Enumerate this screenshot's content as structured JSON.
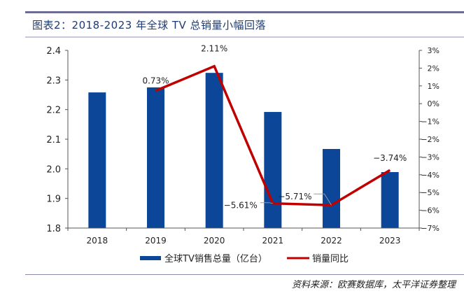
{
  "header": {
    "title": "图表2：2018-2023 年全球 TV 总销量小幅回落"
  },
  "source": "资料来源：欧赛数据库，太平洋证券整理",
  "colors": {
    "bar": "#0b4698",
    "line": "#c00000",
    "title": "#1f3a6e"
  },
  "chart_data": {
    "type": "bar+line",
    "categories": [
      "2018",
      "2019",
      "2020",
      "2021",
      "2022",
      "2023"
    ],
    "series": [
      {
        "name": "全球TV销售总量（亿台）",
        "type": "bar",
        "axis": "left",
        "values": [
          2.258,
          2.275,
          2.324,
          2.192,
          2.067,
          1.989
        ]
      },
      {
        "name": "销量同比",
        "type": "line",
        "axis": "right",
        "values": [
          null,
          0.73,
          2.11,
          -5.61,
          -5.71,
          -3.74
        ],
        "labels": [
          "",
          "0.73%",
          "2.11%",
          "-5.61%",
          "-5.71%",
          "-3.74%"
        ]
      }
    ],
    "left_axis": {
      "ylim": [
        1.8,
        2.4
      ],
      "ticks": [
        "1.8",
        "1.9",
        "2.0",
        "2.1",
        "2.2",
        "2.3",
        "2.4"
      ]
    },
    "right_axis": {
      "ylim": [
        -7,
        3
      ],
      "ticks": [
        "-7%",
        "-6%",
        "-5%",
        "-4%",
        "-3%",
        "-2%",
        "-1%",
        "0%",
        "1%",
        "2%",
        "3%"
      ]
    },
    "legend": [
      "全球TV销售总量（亿台）",
      "销量同比"
    ],
    "legend_position": "bottom",
    "grid": false
  }
}
